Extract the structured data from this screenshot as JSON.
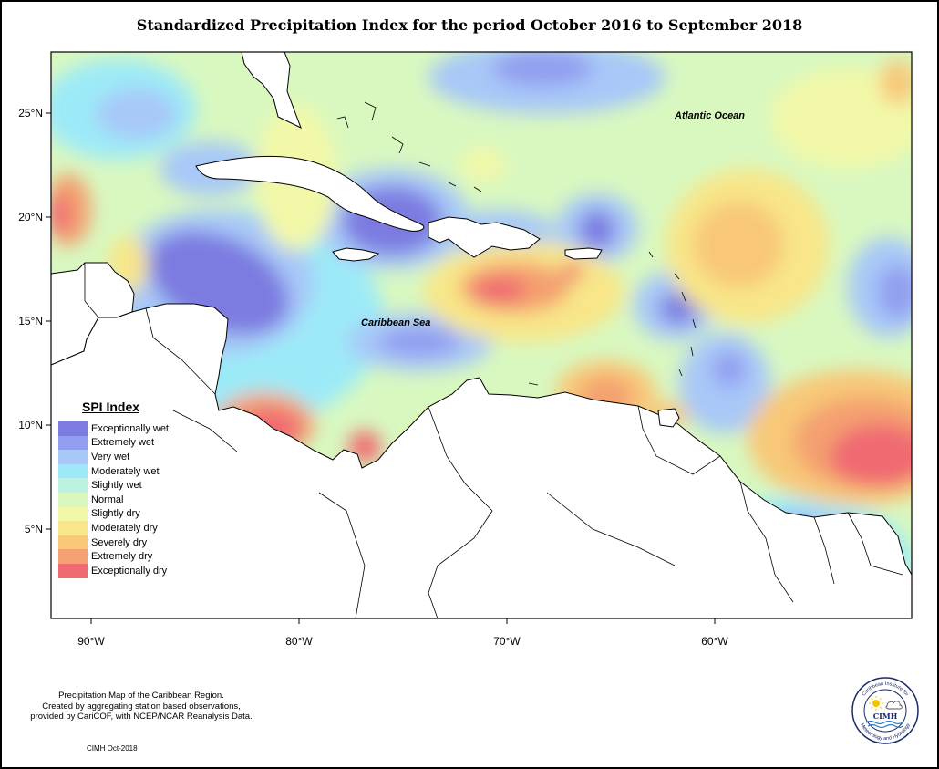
{
  "title": "Standardized Precipitation Index for the period October 2016 to September 2018",
  "labels": {
    "atlantic": "Atlantic Ocean",
    "caribbean": "Caribbean Sea"
  },
  "axes": {
    "lat": [
      "25°N",
      "20°N",
      "15°N",
      "10°N",
      "5°N"
    ],
    "lon": [
      "90°W",
      "80°W",
      "70°W",
      "60°W"
    ]
  },
  "legend": {
    "title": "SPI Index",
    "items": [
      {
        "label": "Exceptionally wet",
        "color": "#7b7be0"
      },
      {
        "label": "Extremely wet",
        "color": "#929ef0"
      },
      {
        "label": "Very wet",
        "color": "#a8c8f8"
      },
      {
        "label": "Moderately wet",
        "color": "#9ceaf8"
      },
      {
        "label": "Slightly wet",
        "color": "#bdf2e0"
      },
      {
        "label": "Normal",
        "color": "#d8f8c0"
      },
      {
        "label": "Slightly dry",
        "color": "#f2f8a8"
      },
      {
        "label": "Moderately dry",
        "color": "#f8e688"
      },
      {
        "label": "Severely dry",
        "color": "#f8c878"
      },
      {
        "label": "Extremely dry",
        "color": "#f4a070"
      },
      {
        "label": "Exceptionally dry",
        "color": "#f06a72"
      }
    ]
  },
  "caption": [
    "Precipitation Map of the Caribbean Region.",
    "Created by aggregating station based observations,",
    "provided by CariCOF, with NCEP/NCAR Reanalysis Data."
  ],
  "credit": "CIMH Oct-2018",
  "logo": {
    "text": "CIMH",
    "ring_top": "Caribbean Institute for",
    "ring_bottom": "Meteorology and Hydrology"
  }
}
